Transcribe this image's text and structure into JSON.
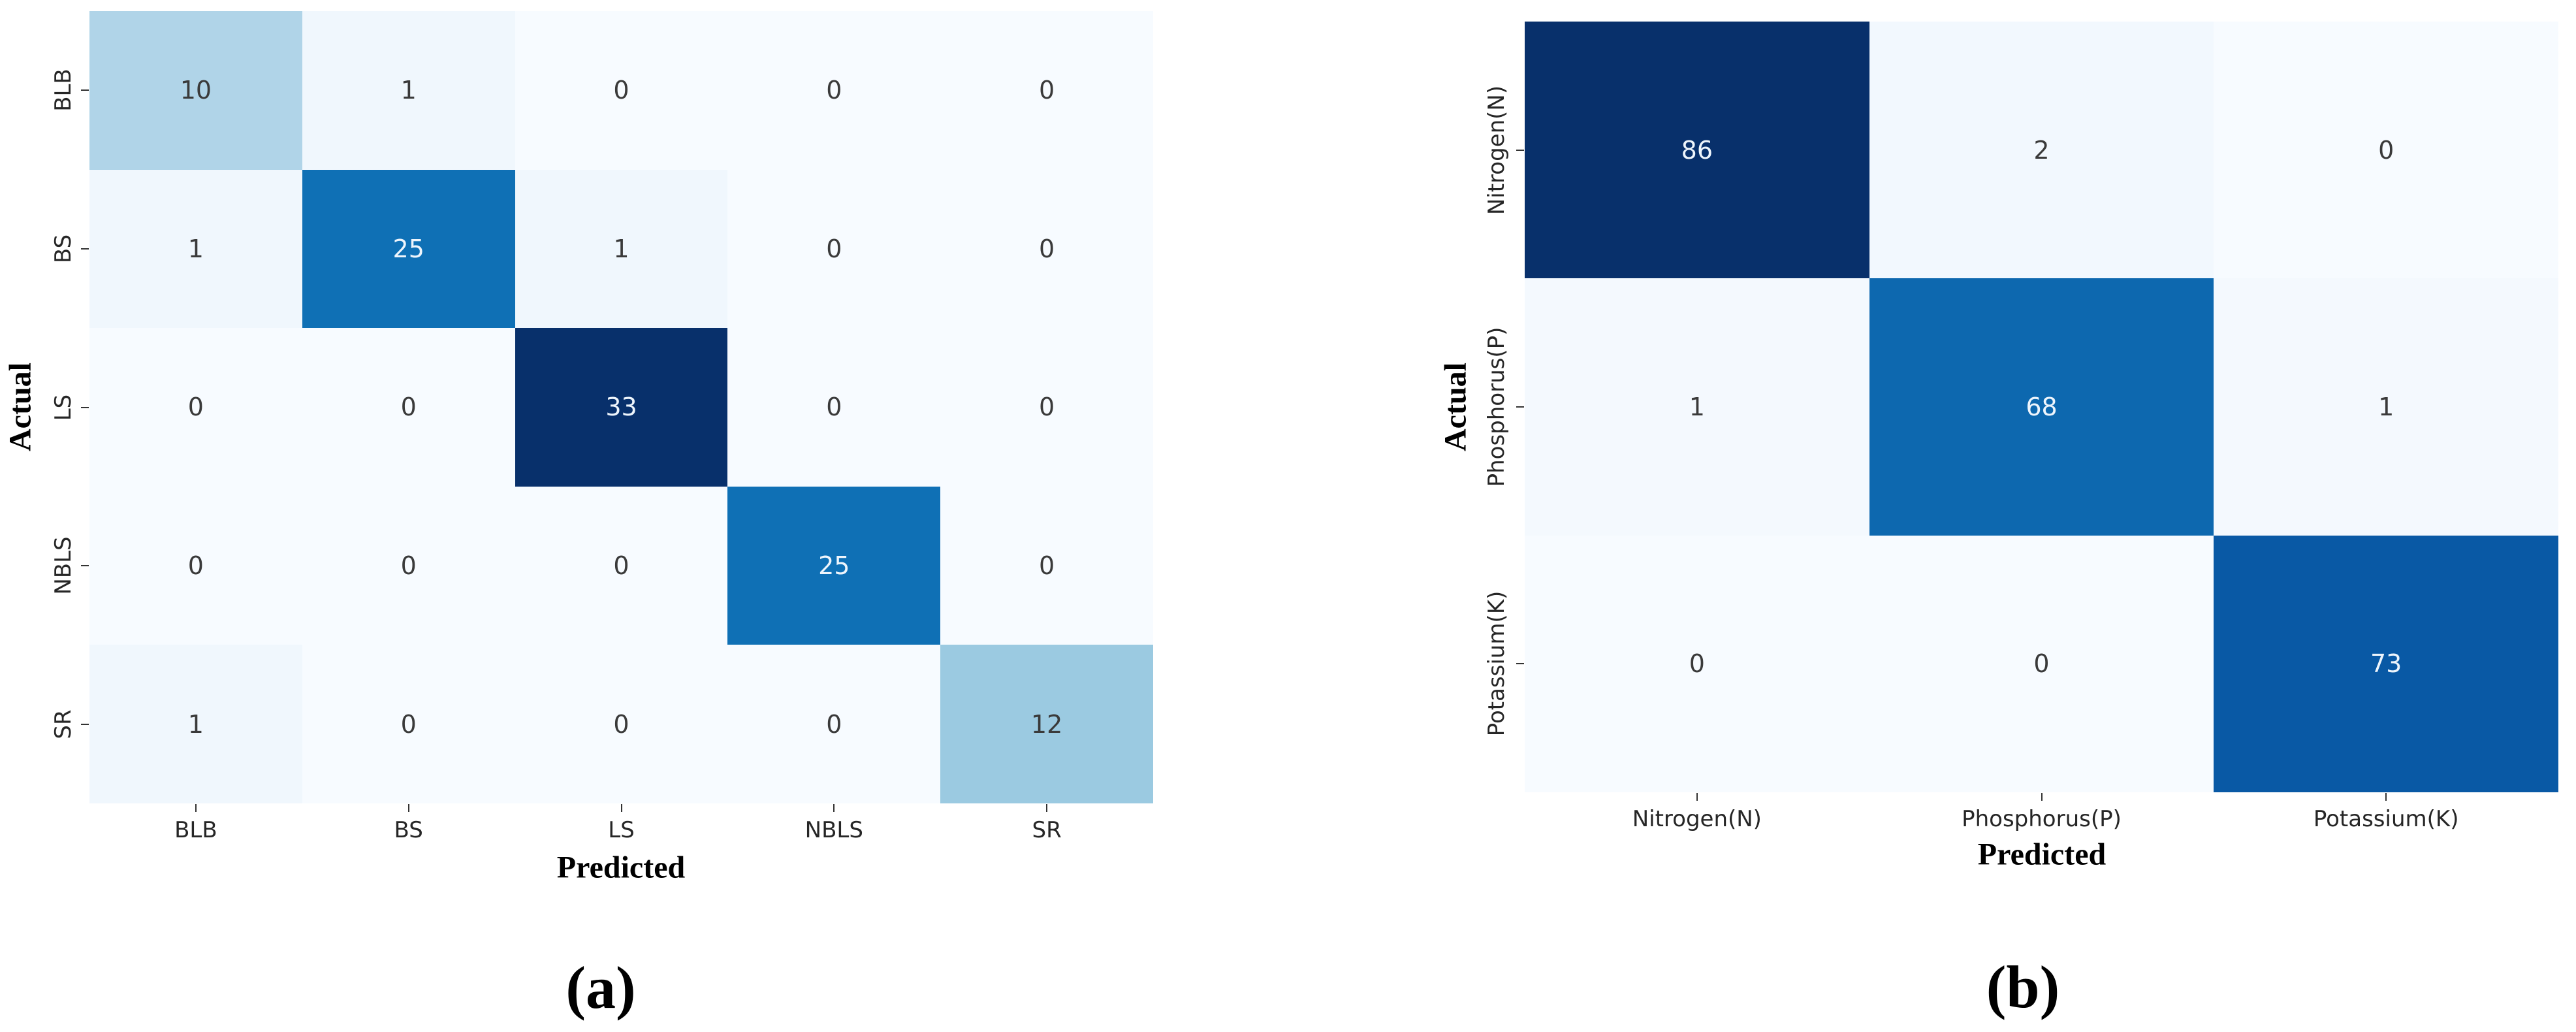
{
  "chart_data": [
    {
      "type": "heatmap",
      "panel_caption": "(a)",
      "xlabel": "Predicted",
      "ylabel": "Actual",
      "x_categories": [
        "BLB",
        "BS",
        "LS",
        "NBLS",
        "SR"
      ],
      "y_categories": [
        "BLB",
        "BS",
        "LS",
        "NBLS",
        "SR"
      ],
      "matrix": [
        [
          10,
          1,
          0,
          0,
          0
        ],
        [
          1,
          25,
          1,
          0,
          0
        ],
        [
          0,
          0,
          33,
          0,
          0
        ],
        [
          0,
          0,
          0,
          25,
          0
        ],
        [
          1,
          0,
          0,
          0,
          12
        ]
      ],
      "vmin": 0,
      "vmax": 33,
      "annotated": true,
      "colorbar": false,
      "legend": "none"
    },
    {
      "type": "heatmap",
      "panel_caption": "(b)",
      "xlabel": "Predicted",
      "ylabel": "Actual",
      "x_categories": [
        "Nitrogen(N)",
        "Phosphorus(P)",
        "Potassium(K)"
      ],
      "y_categories": [
        "Nitrogen(N)",
        "Phosphorus(P)",
        "Potassium(K)"
      ],
      "matrix": [
        [
          86,
          2,
          0
        ],
        [
          1,
          68,
          1
        ],
        [
          0,
          0,
          73
        ]
      ],
      "vmin": 0,
      "vmax": 86,
      "annotated": true,
      "colorbar": false,
      "legend": "none"
    }
  ],
  "colors": {
    "background": "#ffffff",
    "colormap_name": "Blues",
    "colormap_stops": [
      "#f7fbff",
      "#dceaf7",
      "#c2dcee",
      "#97c8e0",
      "#61aed6",
      "#3492c6",
      "#0f72b6",
      "#0853a0",
      "#08306b"
    ],
    "annotation_dark": "#3a3a3a",
    "annotation_light": "#eef5fc",
    "tick_color": "#333333",
    "tick_label_color": "#262626",
    "axis_label_color": "#000000"
  }
}
